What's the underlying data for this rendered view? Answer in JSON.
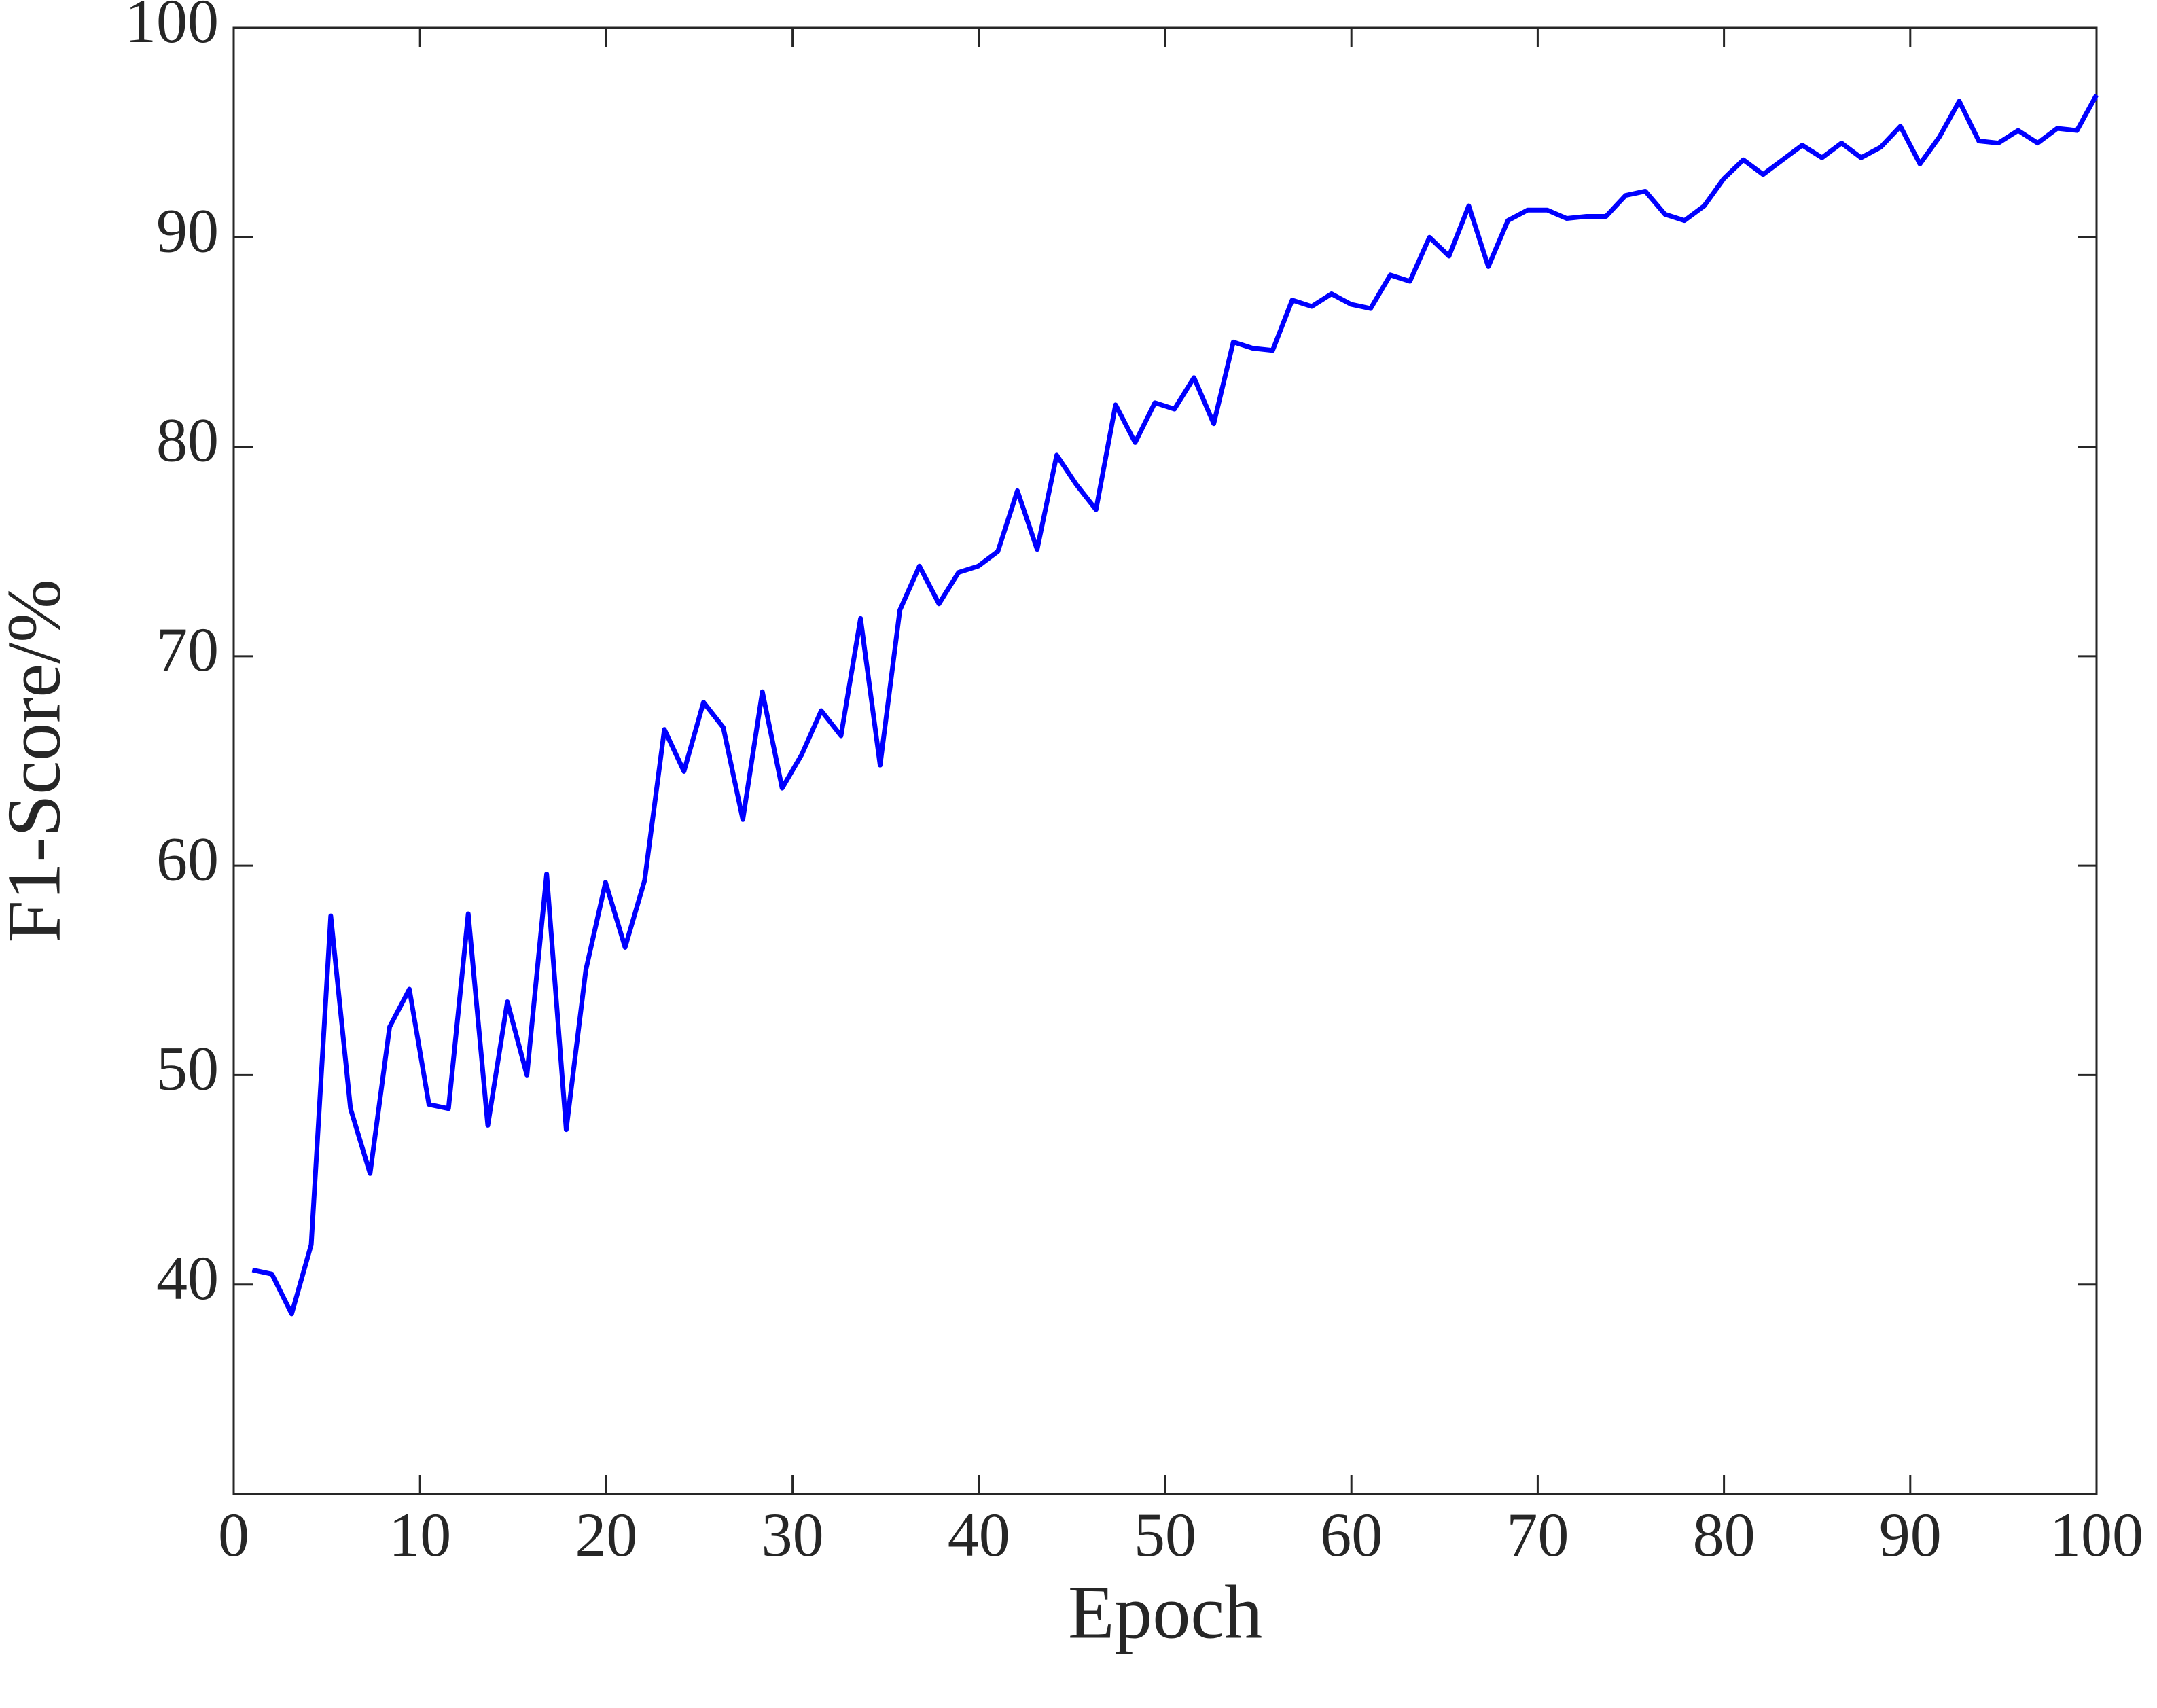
{
  "chart_data": {
    "type": "line",
    "x_label": "Epoch",
    "y_label": "F1-Score/%",
    "x": [
      1,
      2.05,
      3.11,
      4.16,
      5.21,
      6.27,
      7.32,
      8.37,
      9.43,
      10.48,
      11.53,
      12.59,
      13.64,
      14.69,
      15.74,
      16.8,
      17.85,
      18.9,
      19.96,
      21.01,
      22.06,
      23.12,
      24.17,
      25.22,
      26.28,
      27.33,
      28.38,
      29.44,
      30.49,
      31.54,
      32.6,
      33.65,
      34.7,
      35.76,
      36.81,
      37.86,
      38.91,
      39.97,
      41.02,
      42.07,
      43.13,
      44.18,
      45.23,
      46.29,
      47.34,
      48.39,
      49.45,
      50.5,
      51.55,
      52.61,
      53.66,
      54.71,
      55.77,
      56.82,
      57.87,
      58.93,
      59.98,
      61.03,
      62.09,
      63.14,
      64.19,
      65.24,
      66.3,
      67.35,
      68.4,
      69.46,
      70.51,
      71.56,
      72.62,
      73.67,
      74.72,
      75.78,
      76.83,
      77.88,
      78.94,
      79.99,
      81.04,
      82.1,
      83.15,
      84.2,
      85.26,
      86.31,
      87.36,
      88.41,
      89.47,
      90.52,
      91.57,
      92.63,
      93.68,
      94.73,
      95.79,
      96.84,
      97.89,
      98.95,
      100
    ],
    "series": [
      {
        "color": "#0000ff",
        "values": [
          40.7,
          40.5,
          38.6,
          41.9,
          57.6,
          48.4,
          45.3,
          52.3,
          54.1,
          48.6,
          48.4,
          57.7,
          47.6,
          53.5,
          50.0,
          59.6,
          47.4,
          55.0,
          59.2,
          56.1,
          59.3,
          66.5,
          64.5,
          67.8,
          66.6,
          62.2,
          68.3,
          63.7,
          65.3,
          67.4,
          66.2,
          71.8,
          64.8,
          72.2,
          74.3,
          72.5,
          74.0,
          74.3,
          75.0,
          77.9,
          75.1,
          79.6,
          78.2,
          77.0,
          82.0,
          80.2,
          82.1,
          81.8,
          83.3,
          81.1,
          85.0,
          84.7,
          84.6,
          87.0,
          86.7,
          87.3,
          86.8,
          86.6,
          88.2,
          87.9,
          90.0,
          89.1,
          91.5,
          88.6,
          90.8,
          91.3,
          91.3,
          90.9,
          91.0,
          91.0,
          92.0,
          92.2,
          91.1,
          90.8,
          91.5,
          92.8,
          93.7,
          93.0,
          93.7,
          94.4,
          93.8,
          94.5,
          93.8,
          94.3,
          95.3,
          93.5,
          94.8,
          96.5,
          94.6,
          94.5,
          95.1,
          94.5,
          95.2,
          95.1,
          96.8
        ]
      }
    ],
    "xlim": [
      0,
      100
    ],
    "xticks": [
      0,
      10,
      20,
      30,
      40,
      50,
      60,
      70,
      80,
      90,
      100
    ],
    "ylim": [
      30,
      100
    ],
    "yticks": [
      40,
      50,
      60,
      70,
      80,
      90,
      100
    ],
    "grid": false
  }
}
